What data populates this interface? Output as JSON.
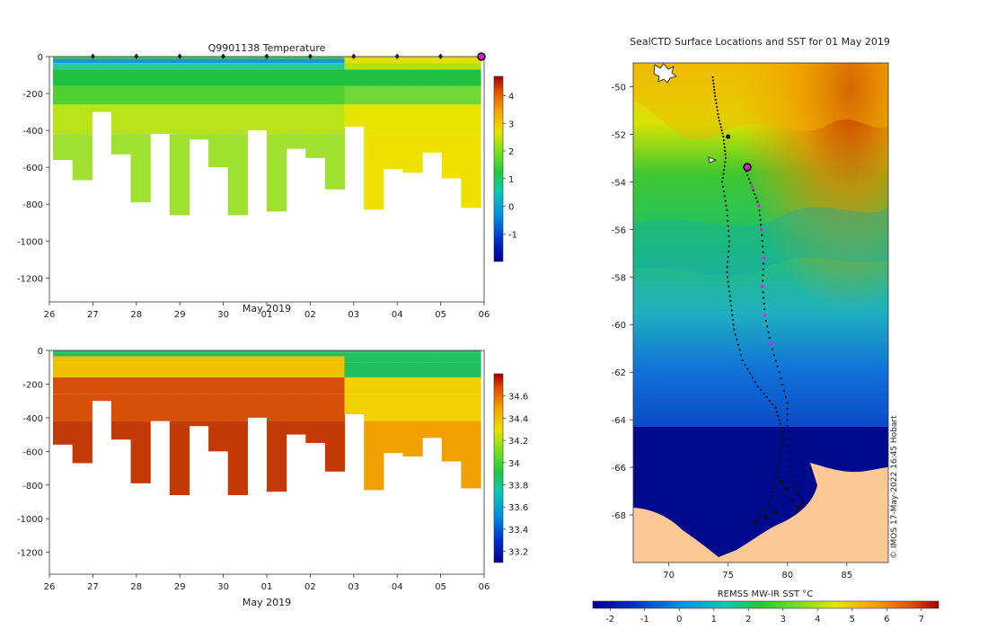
{
  "chart_data": [
    {
      "type": "heatmap",
      "title": "Q9901138  Temperature",
      "xlabel": "May 2019",
      "ylabel": "",
      "x_ticks": [
        "26",
        "27",
        "28",
        "29",
        "30",
        "01",
        "02",
        "03",
        "04",
        "05",
        "06"
      ],
      "y_ticks": [
        0,
        -200,
        -400,
        -600,
        -800,
        -1000,
        -1200
      ],
      "ylim": [
        -1330,
        0
      ],
      "colorbar": {
        "ticks": [
          4,
          3,
          2,
          1,
          0,
          -1
        ],
        "range": [
          -2,
          4.7
        ]
      },
      "marker_days": [
        27,
        28,
        29,
        30,
        31,
        32,
        33,
        34,
        35
      ],
      "profile_bottom_depths": [
        560,
        670,
        300,
        530,
        790,
        420,
        860,
        450,
        600,
        860,
        400,
        840,
        500,
        550,
        720,
        380,
        830,
        610,
        630,
        520,
        660,
        820
      ],
      "colors": {
        "warm_top": "#f2dd00",
        "mid": "#2ecc2e",
        "cold_surface": "#1aa7d8",
        "deep_min": "#9be33a"
      }
    },
    {
      "type": "heatmap",
      "title": "",
      "xlabel": "May 2019",
      "ylabel": "",
      "x_ticks": [
        "26",
        "27",
        "28",
        "29",
        "30",
        "01",
        "02",
        "03",
        "04",
        "05",
        "06"
      ],
      "y_ticks": [
        0,
        -200,
        -400,
        -600,
        -800,
        -1000,
        -1200
      ],
      "ylim": [
        -1330,
        0
      ],
      "colorbar": {
        "ticks": [
          34.6,
          34.4,
          34.2,
          34,
          33.8,
          33.6,
          33.4,
          33.2
        ],
        "range": [
          33.1,
          34.8
        ]
      },
      "colors": {
        "surface": "#22bb55",
        "high": "#c23a05",
        "mid": "#e87a10"
      }
    },
    {
      "type": "heatmap",
      "title": "SealCTD Surface Locations and SST for 01 May 2019",
      "xlabel": "",
      "ylabel": "",
      "x_ticks": [
        70,
        75,
        80,
        85
      ],
      "y_ticks": [
        -50,
        -52,
        -54,
        -56,
        -58,
        -60,
        -62,
        -64,
        -66,
        -68
      ],
      "xlim": [
        67,
        88.5
      ],
      "ylim": [
        -70,
        -49
      ],
      "colorbar_label": "REMSS MW-IR SST °C",
      "colorbar": {
        "ticks": [
          -2,
          -1,
          0,
          1,
          2,
          3,
          4,
          5,
          6,
          7
        ],
        "range": [
          -2.5,
          7.5
        ]
      },
      "credit": "© IMOS 17-May-2022 16:45 Hobart",
      "colors": {
        "land": "#fcc896",
        "ice": "#000a8c"
      }
    }
  ]
}
